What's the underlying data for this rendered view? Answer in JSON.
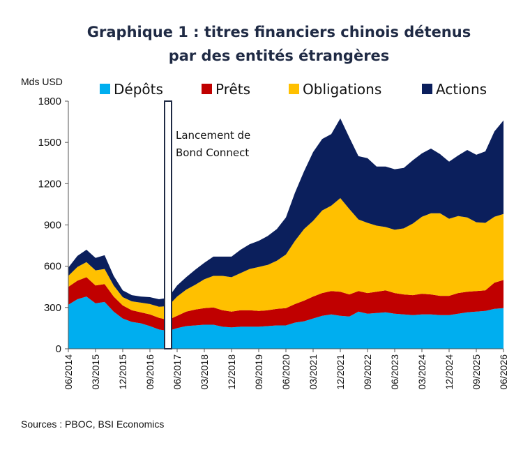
{
  "chart_data": {
    "type": "area",
    "stacked": true,
    "title_line1": "Graphique 1 : titres financiers chinois détenus",
    "title_line2": "par des entités étrangères",
    "ylabel": "Mds USD",
    "ylim": [
      0,
      1800
    ],
    "yticks": [
      0,
      300,
      600,
      900,
      1200,
      1500,
      1800
    ],
    "xlim": [
      "2014-06",
      "2026-06"
    ],
    "xticks": [
      "06/2014",
      "03/2015",
      "12/2015",
      "09/2016",
      "06/2017",
      "03/2018",
      "12/2018",
      "09/2019",
      "06/2020",
      "03/2021",
      "12/2021",
      "09/2022",
      "06/2023",
      "03/2024",
      "12/2024",
      "09/2025",
      "06/2026"
    ],
    "legend_position": "top",
    "grid": false,
    "annotation": {
      "line1": "Lancement de",
      "line2": "Bond Connect",
      "date": "2017-06"
    },
    "source": "Sources : PBOC, BSI Economics",
    "x": [
      "2014-06",
      "2014-09",
      "2014-12",
      "2015-03",
      "2015-06",
      "2015-09",
      "2015-12",
      "2016-03",
      "2016-06",
      "2016-09",
      "2016-12",
      "2017-03",
      "2017-06",
      "2017-09",
      "2017-12",
      "2018-03",
      "2018-06",
      "2018-09",
      "2018-12",
      "2019-03",
      "2019-06",
      "2019-09",
      "2019-12",
      "2020-03",
      "2020-06",
      "2020-09",
      "2020-12",
      "2021-03",
      "2021-06",
      "2021-09",
      "2021-12",
      "2022-03",
      "2022-06",
      "2022-09",
      "2022-12",
      "2023-03",
      "2023-06",
      "2023-09",
      "2023-12",
      "2024-03",
      "2024-06",
      "2024-09",
      "2024-12",
      "2025-03",
      "2025-06",
      "2025-09",
      "2025-12",
      "2026-03",
      "2026-06"
    ],
    "series": [
      {
        "name": "Dépôts",
        "color": "#00aeef",
        "values": [
          320,
          360,
          380,
          330,
          340,
          270,
          220,
          195,
          185,
          165,
          140,
          130,
          150,
          165,
          170,
          175,
          175,
          160,
          155,
          160,
          160,
          160,
          165,
          170,
          170,
          190,
          200,
          220,
          240,
          250,
          240,
          235,
          270,
          255,
          260,
          265,
          255,
          250,
          245,
          250,
          250,
          245,
          245,
          255,
          265,
          270,
          275,
          290,
          295
        ]
      },
      {
        "name": "Prêts",
        "color": "#c00000",
        "values": [
          130,
          135,
          140,
          130,
          130,
          110,
          95,
          85,
          80,
          85,
          85,
          80,
          90,
          105,
          115,
          120,
          125,
          120,
          115,
          120,
          120,
          115,
          115,
          120,
          125,
          135,
          150,
          160,
          165,
          170,
          175,
          160,
          150,
          150,
          155,
          160,
          150,
          145,
          145,
          150,
          145,
          140,
          140,
          150,
          150,
          150,
          150,
          190,
          205
        ]
      },
      {
        "name": "Obligations",
        "color": "#ffc000",
        "values": [
          80,
          100,
          110,
          110,
          110,
          80,
          60,
          65,
          70,
          75,
          80,
          100,
          140,
          160,
          180,
          210,
          230,
          250,
          250,
          270,
          300,
          320,
          330,
          350,
          390,
          460,
          520,
          550,
          600,
          620,
          680,
          620,
          520,
          510,
          480,
          460,
          460,
          480,
          520,
          560,
          590,
          600,
          560,
          560,
          540,
          500,
          490,
          480,
          480
        ]
      },
      {
        "name": "Actions",
        "color": "#0b1f5c",
        "values": [
          60,
          80,
          90,
          90,
          100,
          70,
          50,
          45,
          45,
          50,
          55,
          60,
          80,
          90,
          110,
          120,
          140,
          140,
          150,
          170,
          180,
          190,
          210,
          230,
          270,
          350,
          420,
          500,
          520,
          520,
          580,
          520,
          460,
          470,
          430,
          440,
          440,
          440,
          460,
          460,
          470,
          430,
          415,
          440,
          490,
          490,
          520,
          620,
          680
        ]
      }
    ]
  }
}
